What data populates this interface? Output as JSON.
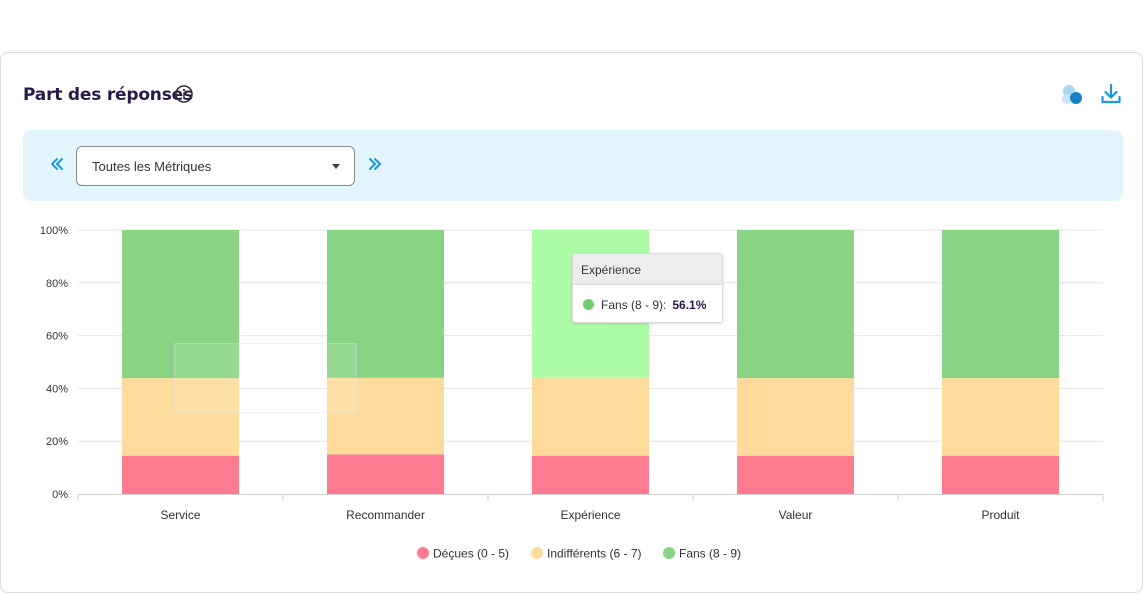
{
  "card": {
    "title": "Part des réponses",
    "icons": {
      "info": "info-circle-icon",
      "shapes": "bubbles-icon",
      "download": "download-icon"
    }
  },
  "filter": {
    "prev_icon": "double-chevron-left-icon",
    "next_icon": "double-chevron-right-icon",
    "selected": "Toutes les Métriques"
  },
  "colors": {
    "decues": "#ff7b8f",
    "indifferents": "#fedb9a",
    "fans": "#88d484",
    "fans_hover": "#acfda6",
    "accent": "#1a9ad9"
  },
  "chart_data": {
    "type": "bar",
    "stacked": true,
    "categories": [
      "Service",
      "Recommander",
      "Expérience",
      "Valeur",
      "Produit"
    ],
    "y_ticks": [
      "0%",
      "20%",
      "40%",
      "60%",
      "80%",
      "100%"
    ],
    "ylim": [
      0,
      100
    ],
    "grid": true,
    "legend_position": "bottom",
    "series": [
      {
        "name": "Déçues (0 - 5)",
        "color_key": "decues",
        "values": [
          14.5,
          15.0,
          14.5,
          14.5,
          14.5
        ]
      },
      {
        "name": "Indifférents (6 - 7)",
        "color_key": "indifferents",
        "values": [
          29.4,
          29.0,
          29.4,
          29.4,
          29.4
        ]
      },
      {
        "name": "Fans (8 - 9)",
        "color_key": "fans",
        "values": [
          56.1,
          56.0,
          56.1,
          56.1,
          56.1
        ]
      }
    ],
    "highlight_category": "Expérience",
    "tooltip": {
      "title": "Expérience",
      "series": "Fans (8 - 9):",
      "value": "56.1%"
    }
  }
}
